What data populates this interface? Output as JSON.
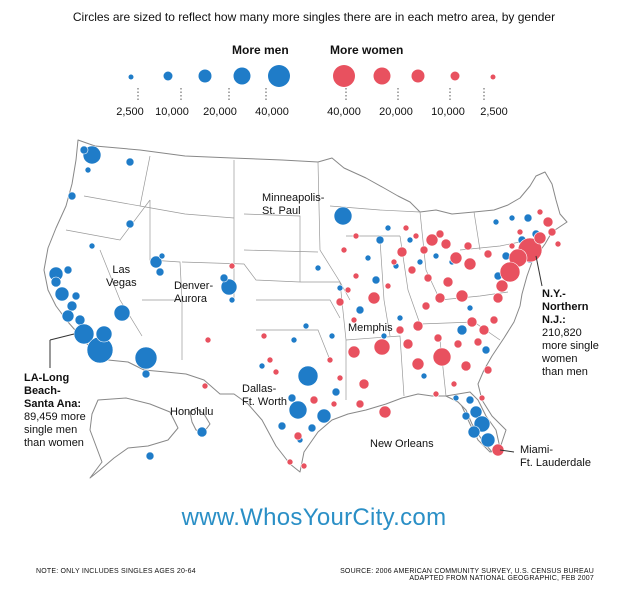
{
  "subtitle": "Circles are sized to reflect how many more singles there are in each metro area, by gender",
  "legend": {
    "men_heading": "More men",
    "women_heading": "More women",
    "men_values": [
      "2,500",
      "10,000",
      "20,000",
      "40,000"
    ],
    "women_values": [
      "40,000",
      "20,000",
      "10,000",
      "2,500"
    ]
  },
  "colors": {
    "men": "#1f7cc8",
    "women": "#e8515f",
    "land": "#ffffff",
    "border": "#888888",
    "url": "#2a8fc6"
  },
  "labels": {
    "minneapolis": [
      "Minneapolis-",
      "St. Paul"
    ],
    "las_vegas": [
      "Las",
      "Vegas"
    ],
    "denver": [
      "Denver-",
      "Aurora"
    ],
    "la_title": [
      "LA-Long",
      "Beach-",
      "Santa Ana:"
    ],
    "la_text": [
      "89,459 more",
      "single men",
      "than women"
    ],
    "ny_title": [
      "N.Y.-",
      "Northern",
      "N.J.:"
    ],
    "ny_text": [
      "210,820",
      "more single",
      "women",
      "than men"
    ],
    "memphis": "Memphis",
    "dallas": [
      "Dallas-",
      "Ft. Worth"
    ],
    "honolulu": "Honolulu",
    "new_orleans": "New Orleans",
    "miami": [
      "Miami-",
      "Ft. Lauderdale"
    ]
  },
  "site_url": "www.WhosYourCity.com",
  "footnote": "NOTE: ONLY INCLUDES SINGLES AGES 20-64",
  "source": [
    "SOURCE: 2006 AMERICAN COMMUNITY SURVEY, U.S. CENSUS BUREAU",
    "ADAPTED FROM NATIONAL GEOGRAPHIC, FEB 2007"
  ]
}
